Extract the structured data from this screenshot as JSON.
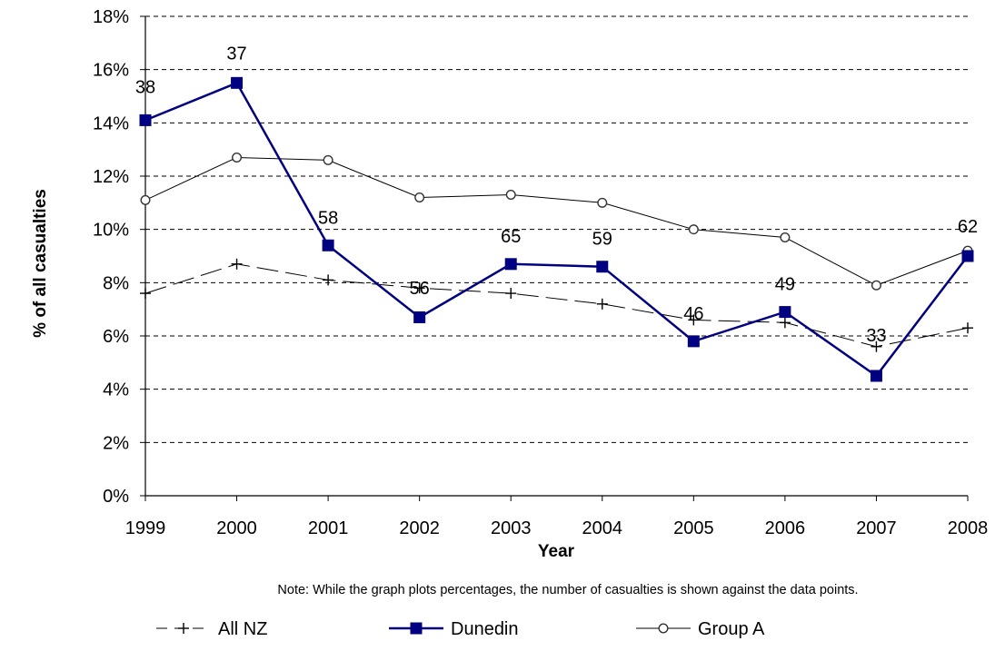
{
  "chart_data": {
    "type": "line",
    "title": "",
    "xlabel": "Year",
    "ylabel": "% of all casualties",
    "x": [
      "1999",
      "2000",
      "2001",
      "2002",
      "2003",
      "2004",
      "2005",
      "2006",
      "2007",
      "2008"
    ],
    "y_ticks": [
      "0%",
      "2%",
      "4%",
      "6%",
      "8%",
      "10%",
      "12%",
      "14%",
      "16%",
      "18%"
    ],
    "ylim": [
      0,
      18
    ],
    "grid": true,
    "legend_position": "bottom",
    "series": [
      {
        "name": "All NZ",
        "values": [
          7.6,
          8.7,
          8.1,
          7.8,
          7.6,
          7.2,
          6.6,
          6.5,
          5.6,
          6.3
        ],
        "color": "#000000"
      },
      {
        "name": "Dunedin",
        "values": [
          14.1,
          15.5,
          9.4,
          6.7,
          8.7,
          8.6,
          5.8,
          6.9,
          4.5,
          9.0
        ],
        "data_labels": [
          "38",
          "37",
          "58",
          "56",
          "65",
          "59",
          "46",
          "49",
          "33",
          "62"
        ],
        "color": "#000080"
      },
      {
        "name": "Group A",
        "values": [
          11.1,
          12.7,
          12.6,
          11.2,
          11.3,
          11.0,
          10.0,
          9.7,
          7.9,
          9.2
        ],
        "color": "#000000"
      }
    ],
    "note": "Note: While the graph plots percentages, the number of casualties is shown against the data points."
  }
}
